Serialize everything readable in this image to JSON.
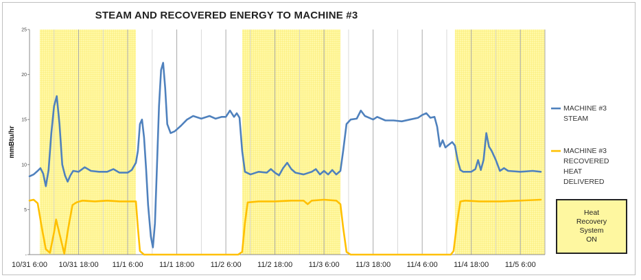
{
  "chart_data": {
    "type": "line",
    "title": "STEAM AND RECOVERED ENERGY TO MACHINE #3",
    "ylabel": "mmBtu/hr",
    "xlabel": "",
    "ylim": [
      0,
      25
    ],
    "yticks": [
      {
        "value": 0,
        "label": "-"
      },
      {
        "value": 5,
        "label": "5"
      },
      {
        "value": 10,
        "label": "10"
      },
      {
        "value": 15,
        "label": "15"
      },
      {
        "value": 20,
        "label": "20"
      },
      {
        "value": 25,
        "label": "25"
      }
    ],
    "xlim": [
      "10/31 6:00",
      "11/5 12:00"
    ],
    "xticks": [
      "10/31 6:00",
      "10/31 18:00",
      "11/1 6:00",
      "11/1 18:00",
      "11/2 6:00",
      "11/2 18:00",
      "11/3 6:00",
      "11/3 18:00",
      "11/4 6:00",
      "11/4 18:00",
      "11/5 6:00"
    ],
    "xtick_labels": [
      "10/31 6:00",
      "10/31 18:00",
      "11/1 6:00",
      "11/1 18:00",
      "11/2 6:00",
      "11/2 18:00",
      "11/3 6:00",
      "11/3 18:00",
      "11/4 6:00",
      "11/4 18:00",
      "11/5 6:00"
    ],
    "grid": "vertical",
    "legend_position": "right",
    "shaded_periods": [
      [
        "10/31 8:30",
        "11/1 8:00"
      ],
      [
        "11/2 10:00",
        "11/3 10:00"
      ],
      [
        "11/4 14:00",
        "11/5 12:00"
      ]
    ],
    "shaded_label": "Heat\nRecovery\nSystem\nON",
    "series": [
      {
        "name": "MACHINE #3\nSTEAM",
        "color": "#4f81bd",
        "points": [
          [
            "10/31 6:00",
            8.7
          ],
          [
            "10/31 7:00",
            8.9
          ],
          [
            "10/31 8:00",
            9.3
          ],
          [
            "10/31 8:40",
            9.6
          ],
          [
            "10/31 9:20",
            9.0
          ],
          [
            "10/31 10:00",
            7.6
          ],
          [
            "10/31 10:40",
            9.4
          ],
          [
            "10/31 11:20",
            13.5
          ],
          [
            "10/31 12:00",
            16.5
          ],
          [
            "10/31 12:40",
            17.6
          ],
          [
            "10/31 13:20",
            14.5
          ],
          [
            "10/31 14:00",
            10.0
          ],
          [
            "10/31 14:40",
            8.8
          ],
          [
            "10/31 15:20",
            8.1
          ],
          [
            "10/31 16:00",
            8.8
          ],
          [
            "10/31 16:40",
            9.3
          ],
          [
            "10/31 18:00",
            9.2
          ],
          [
            "10/31 19:30",
            9.7
          ],
          [
            "10/31 21:00",
            9.3
          ],
          [
            "10/31 23:00",
            9.2
          ],
          [
            "11/1 1:00",
            9.2
          ],
          [
            "11/1 2:30",
            9.5
          ],
          [
            "11/1 4:00",
            9.1
          ],
          [
            "11/1 6:00",
            9.1
          ],
          [
            "11/1 7:00",
            9.4
          ],
          [
            "11/1 8:00",
            10.2
          ],
          [
            "11/1 8:30",
            11.5
          ],
          [
            "11/1 9:00",
            14.5
          ],
          [
            "11/1 9:30",
            15.0
          ],
          [
            "11/1 10:00",
            13.0
          ],
          [
            "11/1 10:30",
            9.5
          ],
          [
            "11/1 11:00",
            5.5
          ],
          [
            "11/1 11:40",
            2.0
          ],
          [
            "11/1 12:10",
            0.8
          ],
          [
            "11/1 12:40",
            3.5
          ],
          [
            "11/1 13:10",
            10.0
          ],
          [
            "11/1 13:40",
            16.5
          ],
          [
            "11/1 14:10",
            20.5
          ],
          [
            "11/1 14:40",
            21.3
          ],
          [
            "11/1 15:10",
            18.5
          ],
          [
            "11/1 15:40",
            14.5
          ],
          [
            "11/1 16:30",
            13.5
          ],
          [
            "11/1 17:30",
            13.7
          ],
          [
            "11/1 19:00",
            14.3
          ],
          [
            "11/1 20:30",
            15.0
          ],
          [
            "11/1 22:00",
            15.4
          ],
          [
            "11/2 0:00",
            15.1
          ],
          [
            "11/2 2:00",
            15.4
          ],
          [
            "11/2 3:30",
            15.1
          ],
          [
            "11/2 5:00",
            15.3
          ],
          [
            "11/2 6:00",
            15.3
          ],
          [
            "11/2 7:00",
            16.0
          ],
          [
            "11/2 8:00",
            15.3
          ],
          [
            "11/2 8:40",
            15.7
          ],
          [
            "11/2 9:20",
            15.2
          ],
          [
            "11/2 10:00",
            11.5
          ],
          [
            "11/2 10:40",
            9.2
          ],
          [
            "11/2 12:00",
            8.9
          ],
          [
            "11/2 14:00",
            9.2
          ],
          [
            "11/2 16:00",
            9.1
          ],
          [
            "11/2 17:00",
            9.5
          ],
          [
            "11/2 18:00",
            9.1
          ],
          [
            "11/2 19:00",
            8.8
          ],
          [
            "11/2 20:00",
            9.6
          ],
          [
            "11/2 21:00",
            10.2
          ],
          [
            "11/2 22:00",
            9.5
          ],
          [
            "11/2 23:00",
            9.1
          ],
          [
            "11/3 1:00",
            8.9
          ],
          [
            "11/3 3:00",
            9.2
          ],
          [
            "11/3 4:00",
            9.5
          ],
          [
            "11/3 5:00",
            8.9
          ],
          [
            "11/3 6:00",
            9.3
          ],
          [
            "11/3 7:00",
            8.9
          ],
          [
            "11/3 8:00",
            9.4
          ],
          [
            "11/3 9:00",
            8.9
          ],
          [
            "11/3 10:00",
            9.3
          ],
          [
            "11/3 10:40",
            11.5
          ],
          [
            "11/3 11:30",
            14.5
          ],
          [
            "11/3 12:30",
            15.0
          ],
          [
            "11/3 14:00",
            15.1
          ],
          [
            "11/3 15:00",
            16.0
          ],
          [
            "11/3 16:00",
            15.4
          ],
          [
            "11/3 17:00",
            15.2
          ],
          [
            "11/3 18:00",
            15.0
          ],
          [
            "11/3 19:00",
            15.3
          ],
          [
            "11/3 21:00",
            14.9
          ],
          [
            "11/3 23:00",
            14.9
          ],
          [
            "11/4 1:00",
            14.8
          ],
          [
            "11/4 3:00",
            15.0
          ],
          [
            "11/4 5:00",
            15.2
          ],
          [
            "11/4 6:00",
            15.5
          ],
          [
            "11/4 7:00",
            15.7
          ],
          [
            "11/4 8:00",
            15.2
          ],
          [
            "11/4 9:00",
            15.3
          ],
          [
            "11/4 9:40",
            14.2
          ],
          [
            "11/4 10:20",
            12.0
          ],
          [
            "11/4 11:00",
            12.7
          ],
          [
            "11/4 11:40",
            11.9
          ],
          [
            "11/4 12:30",
            12.2
          ],
          [
            "11/4 13:20",
            12.5
          ],
          [
            "11/4 14:00",
            12.1
          ],
          [
            "11/4 14:40",
            10.5
          ],
          [
            "11/4 15:20",
            9.4
          ],
          [
            "11/4 16:00",
            9.2
          ],
          [
            "11/4 18:00",
            9.2
          ],
          [
            "11/4 19:00",
            9.5
          ],
          [
            "11/4 19:40",
            10.5
          ],
          [
            "11/4 20:20",
            9.4
          ],
          [
            "11/4 21:00",
            10.5
          ],
          [
            "11/4 21:40",
            13.5
          ],
          [
            "11/4 22:20",
            12.0
          ],
          [
            "11/4 23:00",
            11.5
          ],
          [
            "11/5 0:00",
            10.5
          ],
          [
            "11/5 1:00",
            9.3
          ],
          [
            "11/5 2:00",
            9.6
          ],
          [
            "11/5 3:00",
            9.3
          ],
          [
            "11/5 6:00",
            9.2
          ],
          [
            "11/5 9:00",
            9.3
          ],
          [
            "11/5 11:00",
            9.2
          ]
        ]
      },
      {
        "name": "MACHINE #3\nRECOVERED\nHEAT\nDELIVERED",
        "color": "#ffc000",
        "points": [
          [
            "10/31 6:00",
            6.0
          ],
          [
            "10/31 7:00",
            6.1
          ],
          [
            "10/31 8:00",
            5.7
          ],
          [
            "10/31 9:00",
            3.0
          ],
          [
            "10/31 10:00",
            0.6
          ],
          [
            "10/31 11:00",
            0.2
          ],
          [
            "10/31 12:00",
            2.5
          ],
          [
            "10/31 12:30",
            3.9
          ],
          [
            "10/31 13:30",
            2.0
          ],
          [
            "10/31 14:30",
            0.1
          ],
          [
            "10/31 15:30",
            3.0
          ],
          [
            "10/31 16:30",
            5.5
          ],
          [
            "10/31 17:30",
            5.8
          ],
          [
            "10/31 19:00",
            6.0
          ],
          [
            "10/31 22:00",
            5.9
          ],
          [
            "11/1 1:00",
            6.0
          ],
          [
            "11/1 4:00",
            5.9
          ],
          [
            "11/1 7:00",
            5.9
          ],
          [
            "11/1 8:00",
            5.9
          ],
          [
            "11/1 8:30",
            3.0
          ],
          [
            "11/1 9:00",
            0.4
          ],
          [
            "11/1 10:00",
            0.0
          ],
          [
            "11/2 9:00",
            0.0
          ],
          [
            "11/2 10:00",
            0.3
          ],
          [
            "11/2 10:40",
            3.5
          ],
          [
            "11/2 11:20",
            5.8
          ],
          [
            "11/2 14:00",
            5.9
          ],
          [
            "11/2 18:00",
            5.9
          ],
          [
            "11/2 22:00",
            6.0
          ],
          [
            "11/3 1:00",
            6.0
          ],
          [
            "11/3 2:00",
            5.6
          ],
          [
            "11/3 3:00",
            6.0
          ],
          [
            "11/3 6:00",
            6.1
          ],
          [
            "11/3 9:00",
            6.0
          ],
          [
            "11/3 10:00",
            5.6
          ],
          [
            "11/3 10:40",
            3.0
          ],
          [
            "11/3 11:30",
            0.3
          ],
          [
            "11/3 12:30",
            0.0
          ],
          [
            "11/4 13:00",
            0.0
          ],
          [
            "11/4 13:40",
            0.4
          ],
          [
            "11/4 14:30",
            3.5
          ],
          [
            "11/4 15:20",
            5.9
          ],
          [
            "11/4 16:30",
            6.0
          ],
          [
            "11/4 20:00",
            5.9
          ],
          [
            "11/5 1:00",
            5.9
          ],
          [
            "11/5 6:00",
            6.0
          ],
          [
            "11/5 11:00",
            6.1
          ]
        ]
      }
    ]
  }
}
